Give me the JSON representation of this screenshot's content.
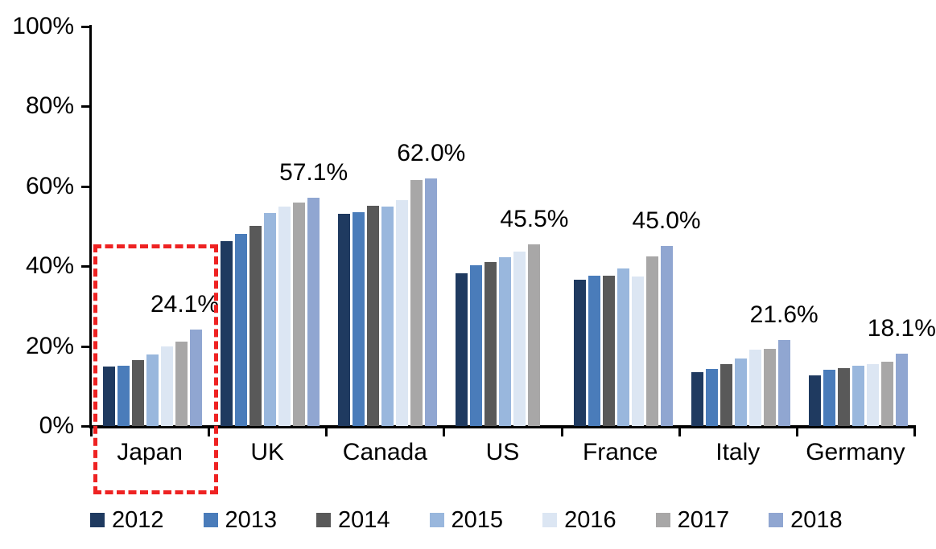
{
  "chart_data": {
    "type": "bar",
    "title": "",
    "categories": [
      "Japan",
      "UK",
      "Canada",
      "US",
      "France",
      "Italy",
      "Germany"
    ],
    "series": [
      {
        "name": "2012",
        "color": "#1f3a60",
        "values": [
          14.8,
          46.3,
          53.2,
          38.3,
          36.6,
          13.4,
          12.6
        ]
      },
      {
        "name": "2013",
        "color": "#4a7cba",
        "values": [
          15.0,
          48.0,
          53.6,
          40.2,
          37.7,
          14.2,
          14.0
        ]
      },
      {
        "name": "2014",
        "color": "#595959",
        "values": [
          16.6,
          50.1,
          55.1,
          41.1,
          37.7,
          15.4,
          14.4
        ]
      },
      {
        "name": "2015",
        "color": "#99b7dd",
        "values": [
          18.0,
          53.3,
          54.9,
          42.2,
          39.4,
          16.9,
          15.0
        ]
      },
      {
        "name": "2016",
        "color": "#dce6f3",
        "values": [
          20.0,
          55.0,
          56.5,
          43.7,
          37.4,
          19.2,
          15.5
        ]
      },
      {
        "name": "2017",
        "color": "#a8a7a7",
        "values": [
          21.1,
          55.9,
          61.5,
          45.5,
          42.4,
          19.4,
          16.0
        ]
      },
      {
        "name": "2018",
        "color": "#90a6d1",
        "values": [
          24.1,
          57.1,
          62.0,
          null,
          45.0,
          21.6,
          18.1
        ]
      }
    ],
    "group_value_labels": [
      "24.1%",
      "57.1%",
      "62.0%",
      "45.5%",
      "45.0%",
      "21.6%",
      "18.1%"
    ],
    "y_ticks": [
      "100%",
      "80%",
      "60%",
      "40%",
      "20%",
      "0%"
    ],
    "ylim": [
      0,
      100
    ],
    "grid": false,
    "legend_position": "bottom",
    "legend_entries": [
      "2012",
      "2013",
      "2014",
      "2015",
      "2016",
      "2017",
      "2018"
    ],
    "highlight": {
      "category": "Japan",
      "shape": "dashed-box",
      "color": "#ee2222"
    }
  }
}
